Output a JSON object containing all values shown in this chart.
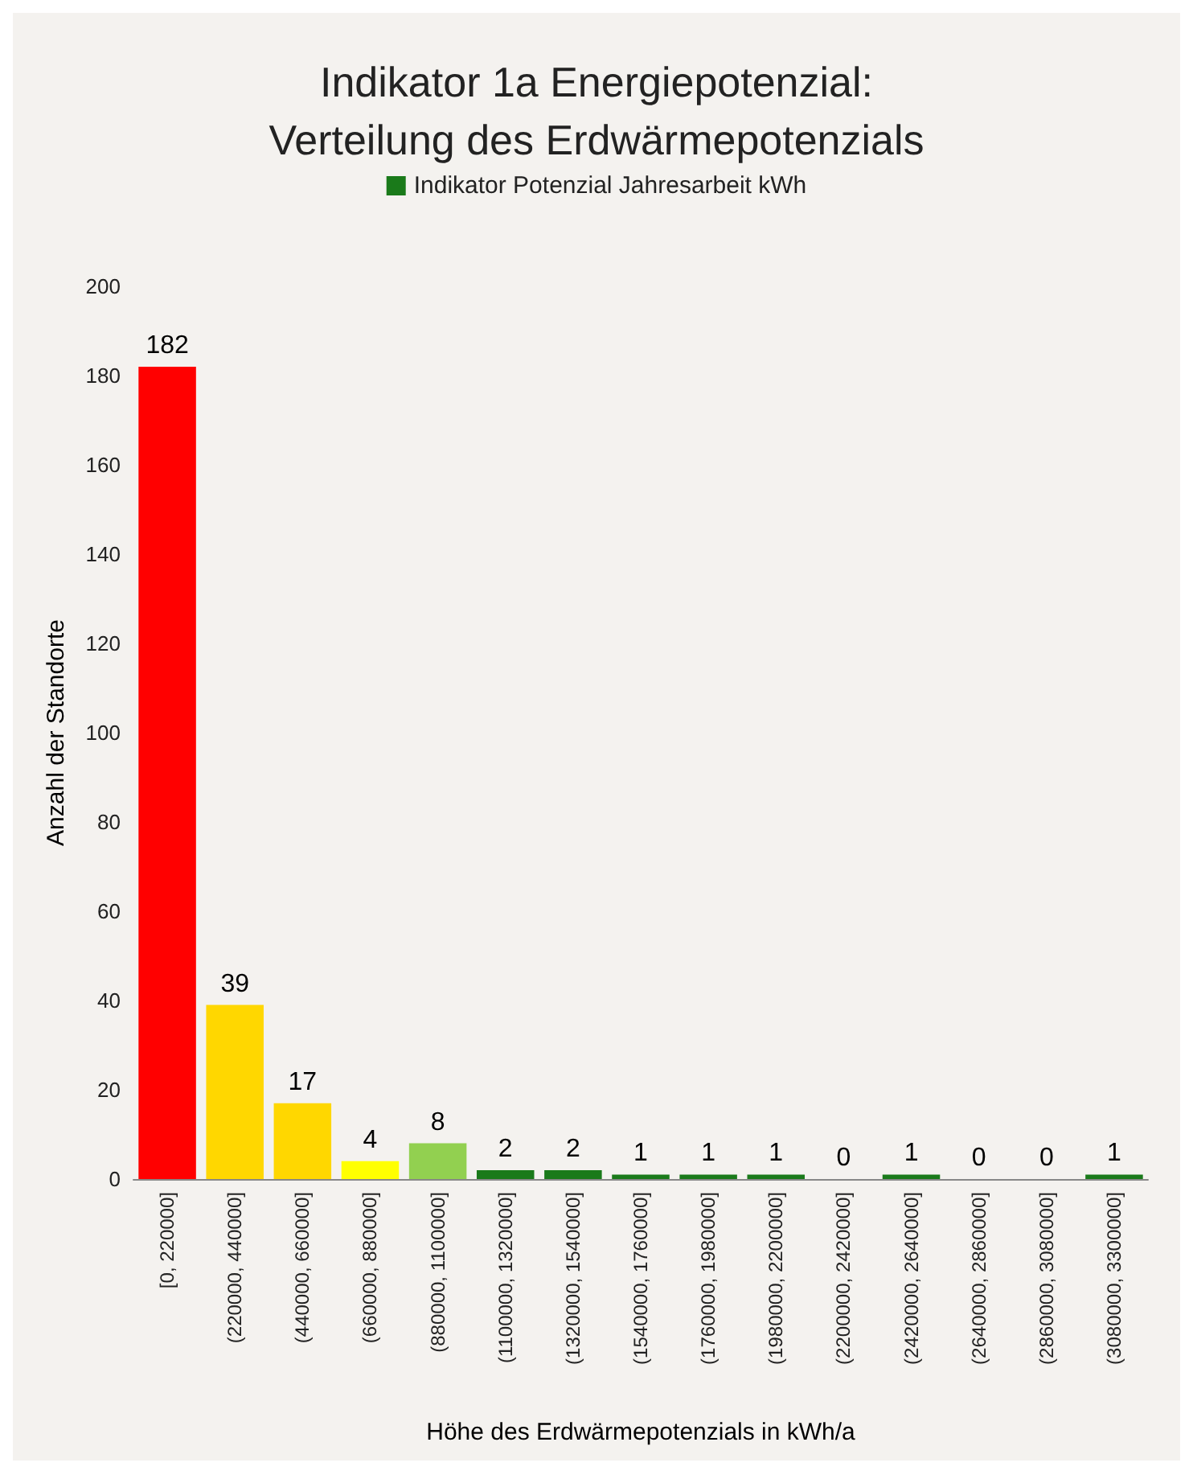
{
  "chart_data": {
    "type": "bar",
    "title": "Indikator 1a Energiepotenzial:\nVerteilung des Erdwärmepotenzials",
    "xlabel": "Höhe des Erdwärmepotenzials in kWh/a",
    "ylabel": "Anzahl der Standorte",
    "categories": [
      "[0, 220000]",
      "(220000, 440000]",
      "(440000, 660000]",
      "(660000, 880000]",
      "(880000, 1100000]",
      "(1100000, 1320000]",
      "(1320000, 1540000]",
      "(1540000, 1760000]",
      "(1760000, 1980000]",
      "(1980000, 2200000]",
      "(2200000, 2420000]",
      "(2420000, 2640000]",
      "(2640000, 2860000]",
      "(2860000, 3080000]",
      "(3080000, 3300000]"
    ],
    "series": [
      {
        "name": "Indikator Potenzial Jahresarbeit kWh",
        "color": "#1a7a1a",
        "values": [
          182,
          39,
          17,
          4,
          8,
          2,
          2,
          1,
          1,
          1,
          0,
          1,
          0,
          0,
          1
        ],
        "colors": [
          "#ff0000",
          "#ffd700",
          "#ffd700",
          "#ffff00",
          "#92d050",
          "#1a7a1a",
          "#1a7a1a",
          "#1a7a1a",
          "#1a7a1a",
          "#1a7a1a",
          "#1a7a1a",
          "#1a7a1a",
          "#1a7a1a",
          "#1a7a1a",
          "#1a7a1a"
        ]
      }
    ],
    "ylim": [
      0,
      200
    ],
    "yticks": [
      0,
      20,
      40,
      60,
      80,
      100,
      120,
      140,
      160,
      180,
      200
    ],
    "grid": false,
    "legend": "top",
    "data_labels": true
  }
}
